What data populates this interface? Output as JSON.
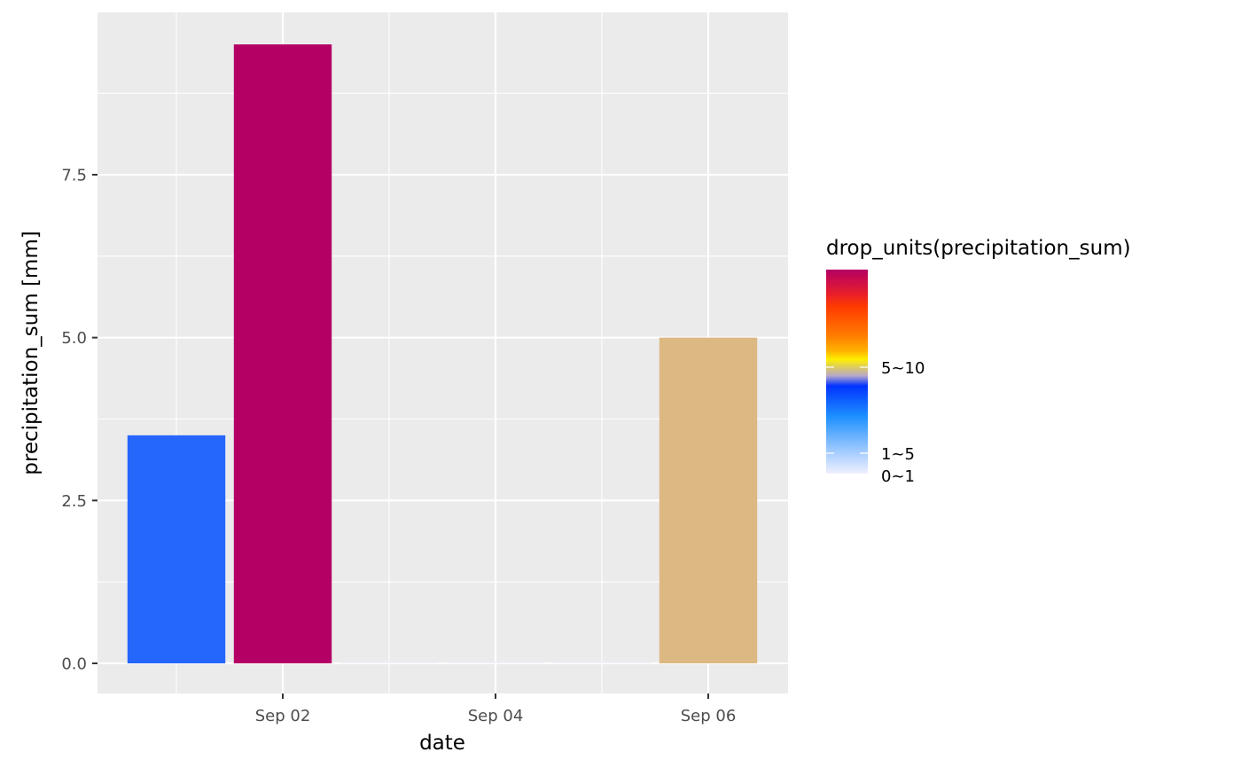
{
  "chart_data": {
    "type": "bar",
    "title": "",
    "xlabel": "date",
    "ylabel": "precipitation_sum [mm]",
    "x_ticks": [
      "Sep 02",
      "Sep 04",
      "Sep 06"
    ],
    "y_ticks": [
      "0.0",
      "2.5",
      "5.0",
      "7.5"
    ],
    "ylim": [
      -0.45,
      10.0
    ],
    "x": [
      "2023-09-01",
      "2023-09-02",
      "2023-09-03",
      "2023-09-04",
      "2023-09-05",
      "2023-09-06"
    ],
    "values": [
      3.5,
      9.5,
      0.0,
      0.0,
      0.0,
      5.0
    ],
    "colors": [
      "#2566fb",
      "#b40064",
      "#f0f0ff",
      "#f0f0ff",
      "#f0f0ff",
      "#dcb882"
    ],
    "grid": true,
    "panel_background": "#ebebeb",
    "legend": {
      "title": "drop_units(precipitation_sum)",
      "position": "right",
      "labels": [
        "5~10",
        "1~5",
        "0~1"
      ],
      "gradient": [
        "#b40064",
        "#e81e2a",
        "#ff3a00",
        "#ff7a00",
        "#ffb400",
        "#ffee00",
        "#b8a8c8",
        "#0033ff",
        "#1e90ff",
        "#8ac0ff",
        "#f0f0ff"
      ]
    }
  }
}
